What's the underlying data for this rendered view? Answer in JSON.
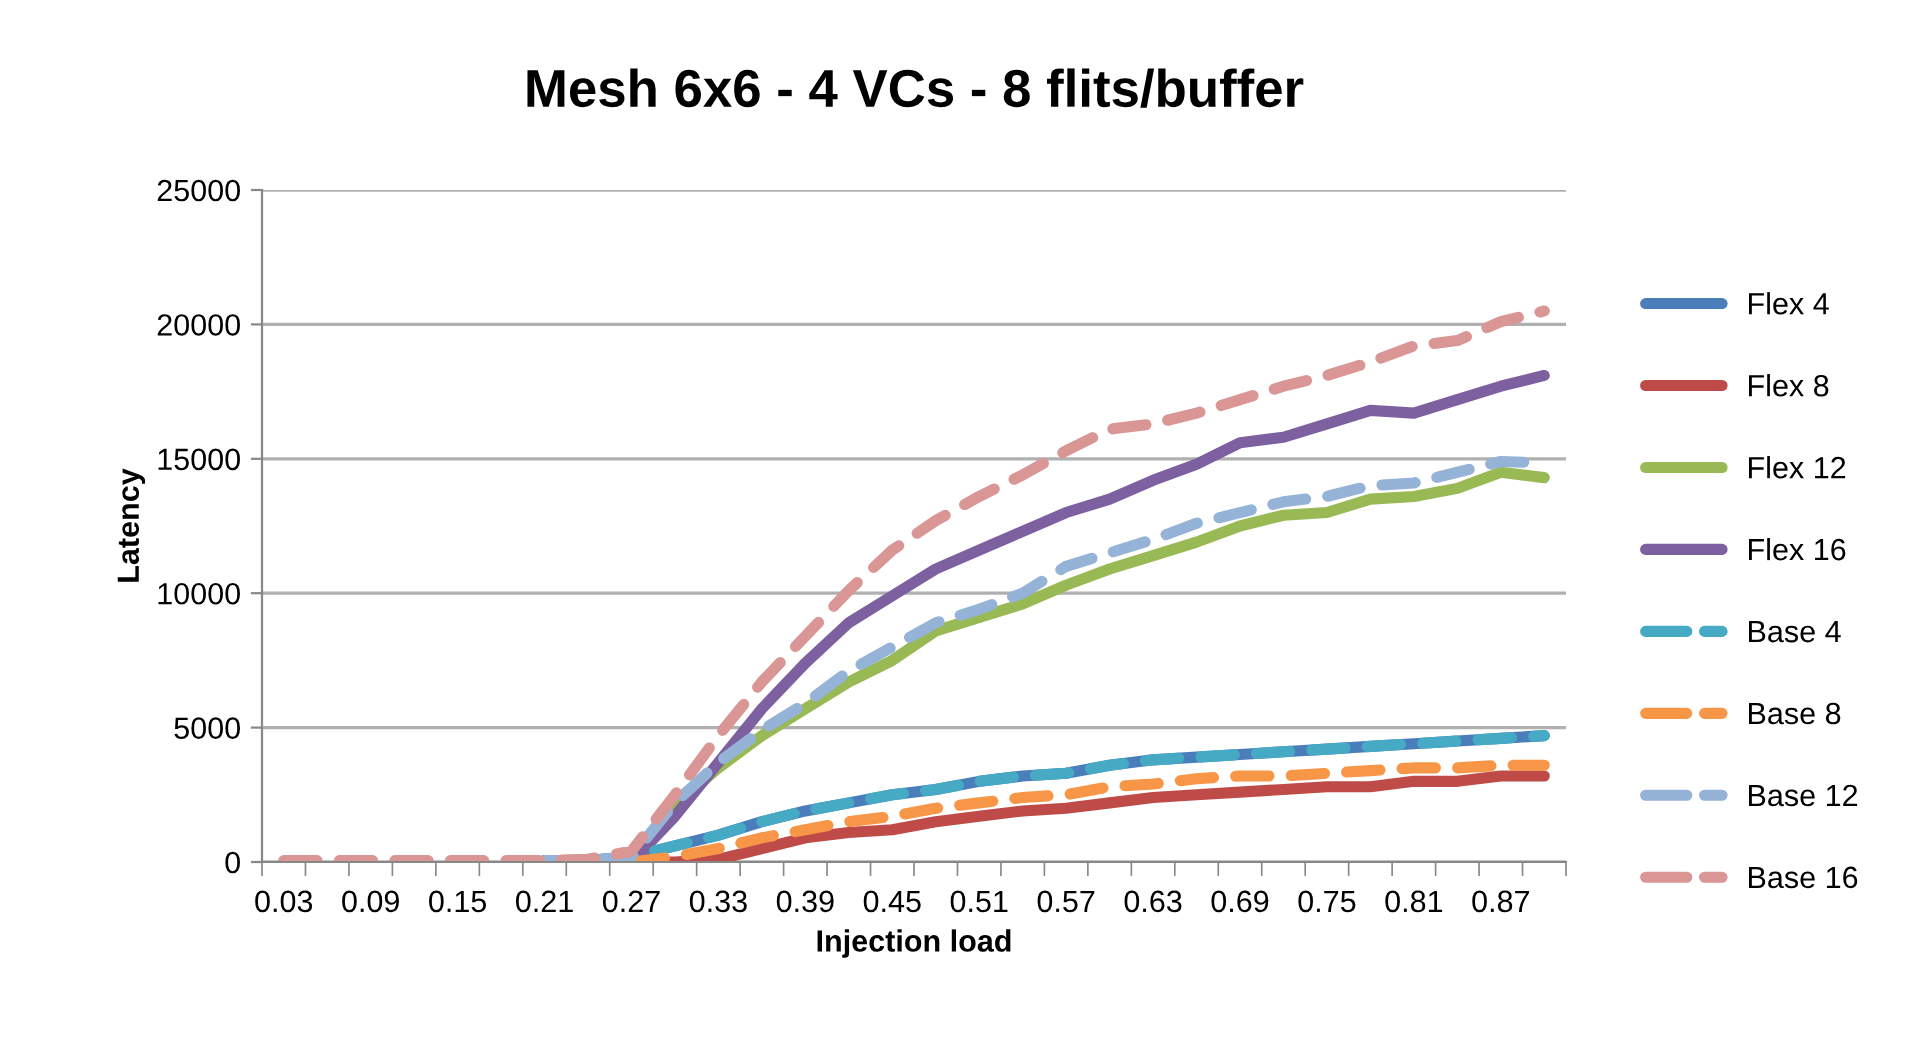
{
  "chart_data": {
    "type": "line",
    "title": "Mesh 6x6 - 4 VCs - 8 flits/buffer",
    "xlabel": "Injection load",
    "ylabel": "Latency",
    "categories": [
      "0.03",
      null,
      "0.09",
      null,
      "0.15",
      null,
      "0.21",
      null,
      "0.27",
      null,
      "0.33",
      null,
      "0.39",
      null,
      "0.45",
      null,
      "0.51",
      null,
      "0.57",
      null,
      "0.63",
      null,
      "0.69",
      null,
      "0.75",
      null,
      "0.81",
      null,
      "0.87",
      null
    ],
    "ylim": [
      0,
      25000
    ],
    "yticks": [
      0,
      5000,
      10000,
      15000,
      20000,
      25000
    ],
    "grid": "y",
    "legend": "right",
    "marker": "none",
    "series": [
      {
        "name": "Flex 4",
        "color": "#4a7ebb",
        "line_style": "solid",
        "values": [
          null,
          null,
          null,
          null,
          null,
          null,
          50,
          50,
          200,
          600,
          1000,
          1500,
          1900,
          2200,
          2500,
          2700,
          3000,
          3200,
          3300,
          3600,
          3800,
          3900,
          4000,
          4100,
          4200,
          4300,
          4400,
          4500,
          4600,
          4700
        ]
      },
      {
        "name": "Flex 8",
        "color": "#be4b48",
        "line_style": "solid",
        "values": [
          null,
          null,
          null,
          null,
          null,
          null,
          50,
          50,
          0,
          0,
          100,
          500,
          900,
          1100,
          1200,
          1500,
          1700,
          1900,
          2000,
          2200,
          2400,
          2500,
          2600,
          2700,
          2800,
          2800,
          3000,
          3000,
          3200,
          3200
        ]
      },
      {
        "name": "Flex 12",
        "color": "#98b954",
        "line_style": "solid",
        "values": [
          null,
          null,
          null,
          null,
          null,
          null,
          null,
          null,
          100,
          2100,
          3500,
          4700,
          5700,
          6700,
          7500,
          8600,
          9100,
          9600,
          10300,
          10900,
          11400,
          11900,
          12500,
          12900,
          13000,
          13500,
          13600,
          13900,
          14500,
          14300
        ]
      },
      {
        "name": "Flex 16",
        "color": "#7d60a0",
        "line_style": "solid",
        "values": [
          null,
          null,
          null,
          null,
          null,
          null,
          50,
          50,
          0,
          1700,
          3700,
          5700,
          7400,
          8900,
          9900,
          10900,
          11600,
          12300,
          13000,
          13500,
          14200,
          14800,
          15600,
          15800,
          16300,
          16800,
          16700,
          17200,
          17700,
          18100
        ]
      },
      {
        "name": "Base 4",
        "color": "#46aac5",
        "line_style": "dashed",
        "values": [
          null,
          null,
          null,
          null,
          null,
          null,
          50,
          50,
          200,
          600,
          1000,
          1500,
          1900,
          2200,
          2500,
          2700,
          3000,
          3200,
          3300,
          3600,
          3800,
          3900,
          4000,
          4100,
          4200,
          4300,
          4400,
          4500,
          4600,
          4700
        ]
      },
      {
        "name": "Base 8",
        "color": "#f79646",
        "line_style": "dashed",
        "values": [
          null,
          null,
          null,
          null,
          null,
          null,
          null,
          null,
          0,
          200,
          500,
          900,
          1200,
          1500,
          1700,
          2000,
          2200,
          2400,
          2500,
          2800,
          2900,
          3100,
          3200,
          3200,
          3300,
          3400,
          3500,
          3500,
          3600,
          3600
        ]
      },
      {
        "name": "Base 12",
        "color": "#95b3d7",
        "line_style": "dashed",
        "values": [
          null,
          null,
          null,
          null,
          null,
          null,
          50,
          50,
          200,
          2200,
          3700,
          4900,
          5900,
          7100,
          8000,
          8900,
          9400,
          10000,
          11000,
          11500,
          12000,
          12600,
          13000,
          13400,
          13600,
          14000,
          14100,
          14500,
          14900,
          14850
        ]
      },
      {
        "name": "Base 16",
        "color": "#d99694",
        "line_style": "dashed",
        "values": [
          50,
          50,
          50,
          50,
          50,
          50,
          50,
          100,
          400,
          2500,
          4700,
          6700,
          8400,
          10100,
          11600,
          12700,
          13600,
          14400,
          15300,
          16100,
          16300,
          16700,
          17200,
          17700,
          18100,
          18600,
          19200,
          19400,
          20100,
          20500
        ]
      }
    ]
  }
}
